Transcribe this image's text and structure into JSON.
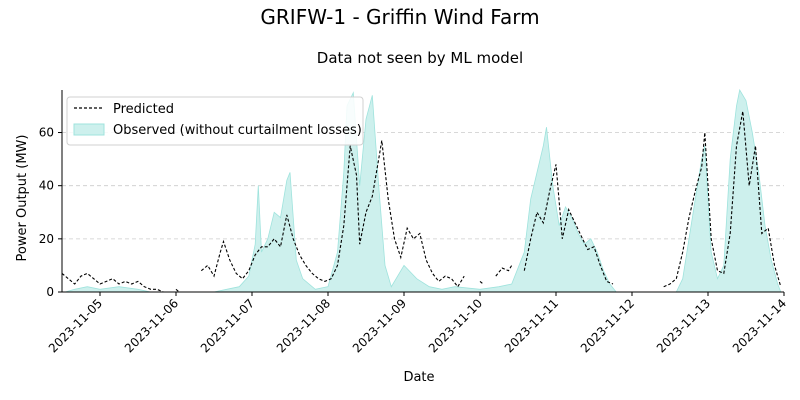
{
  "chart_data": {
    "type": "area",
    "title": "GRIFW-1 - Griffin Wind Farm",
    "subtitle": "Data not seen by ML model",
    "xlabel": "Date",
    "ylabel": "Power Output (MW)",
    "x_start": "2023-11-04 12:00",
    "x_end": "2023-11-14 00:00",
    "x_ticks": [
      "2023-11-05",
      "2023-11-06",
      "2023-11-07",
      "2023-11-08",
      "2023-11-09",
      "2023-11-10",
      "2023-11-11",
      "2023-11-12",
      "2023-11-13",
      "2023-11-14"
    ],
    "ylim": [
      0,
      76
    ],
    "y_ticks": [
      0,
      20,
      40,
      60
    ],
    "grid": "horizontal dashed",
    "legend_position": "top-left",
    "series": [
      {
        "name": "Predicted",
        "style": "dashed-line",
        "color": "#000000",
        "points": [
          [
            "2023-11-04 12:00",
            7
          ],
          [
            "2023-11-04 14:00",
            5
          ],
          [
            "2023-11-04 16:00",
            3
          ],
          [
            "2023-11-04 18:00",
            6
          ],
          [
            "2023-11-04 20:00",
            7
          ],
          [
            "2023-11-04 22:00",
            5
          ],
          [
            "2023-11-05 00:00",
            3
          ],
          [
            "2023-11-05 02:00",
            4
          ],
          [
            "2023-11-05 04:00",
            5
          ],
          [
            "2023-11-05 06:00",
            3
          ],
          [
            "2023-11-05 08:00",
            4
          ],
          [
            "2023-11-05 10:00",
            3
          ],
          [
            "2023-11-05 12:00",
            4
          ],
          [
            "2023-11-05 14:00",
            2
          ],
          [
            "2023-11-05 16:00",
            1
          ],
          [
            "2023-11-05 18:00",
            1
          ],
          [
            "2023-11-05 20:00",
            0
          ],
          null,
          [
            "2023-11-06 00:00",
            1
          ],
          [
            "2023-11-06 01:00",
            0
          ],
          null,
          [
            "2023-11-06 08:00",
            8
          ],
          [
            "2023-11-06 10:00",
            10
          ],
          [
            "2023-11-06 12:00",
            6
          ],
          [
            "2023-11-06 14:00",
            15
          ],
          [
            "2023-11-06 15:00",
            19
          ],
          [
            "2023-11-06 17:00",
            12
          ],
          [
            "2023-11-06 19:00",
            7
          ],
          [
            "2023-11-06 21:00",
            5
          ],
          [
            "2023-11-06 23:00",
            8
          ],
          [
            "2023-11-07 01:00",
            14
          ],
          [
            "2023-11-07 03:00",
            17
          ],
          [
            "2023-11-07 05:00",
            17
          ],
          [
            "2023-11-07 07:00",
            20
          ],
          [
            "2023-11-07 09:00",
            17
          ],
          [
            "2023-11-07 11:00",
            29
          ],
          [
            "2023-11-07 13:00",
            20
          ],
          [
            "2023-11-07 15:00",
            14
          ],
          [
            "2023-11-07 17:00",
            10
          ],
          [
            "2023-11-07 19:00",
            7
          ],
          [
            "2023-11-07 21:00",
            5
          ],
          [
            "2023-11-07 23:00",
            4
          ],
          [
            "2023-11-08 01:00",
            5
          ],
          [
            "2023-11-08 03:00",
            10
          ],
          [
            "2023-11-08 05:00",
            25
          ],
          [
            "2023-11-08 07:00",
            55
          ],
          [
            "2023-11-08 09:00",
            44
          ],
          [
            "2023-11-08 10:00",
            18
          ],
          [
            "2023-11-08 12:00",
            30
          ],
          [
            "2023-11-08 14:00",
            36
          ],
          [
            "2023-11-08 16:00",
            50
          ],
          [
            "2023-11-08 17:00",
            57
          ],
          [
            "2023-11-08 19:00",
            35
          ],
          [
            "2023-11-08 21:00",
            20
          ],
          [
            "2023-11-08 23:00",
            13
          ],
          [
            "2023-11-09 01:00",
            24
          ],
          [
            "2023-11-09 03:00",
            20
          ],
          [
            "2023-11-09 05:00",
            22
          ],
          [
            "2023-11-09 07:00",
            12
          ],
          [
            "2023-11-09 09:00",
            7
          ],
          [
            "2023-11-09 11:00",
            4
          ],
          [
            "2023-11-09 13:00",
            6
          ],
          [
            "2023-11-09 15:00",
            5
          ],
          [
            "2023-11-09 17:00",
            2
          ],
          [
            "2023-11-09 19:00",
            6
          ],
          null,
          [
            "2023-11-10 00:00",
            4
          ],
          [
            "2023-11-10 01:00",
            3
          ],
          null,
          [
            "2023-11-10 05:00",
            6
          ],
          [
            "2023-11-10 07:00",
            9
          ],
          [
            "2023-11-10 09:00",
            8
          ],
          [
            "2023-11-10 10:00",
            10
          ],
          null,
          [
            "2023-11-10 14:00",
            8
          ],
          [
            "2023-11-10 16:00",
            20
          ],
          [
            "2023-11-10 18:00",
            30
          ],
          [
            "2023-11-10 20:00",
            26
          ],
          [
            "2023-11-10 22:00",
            38
          ],
          [
            "2023-11-11 00:00",
            48
          ],
          [
            "2023-11-11 02:00",
            20
          ],
          [
            "2023-11-11 04:00",
            31
          ],
          [
            "2023-11-11 06:00",
            26
          ],
          [
            "2023-11-11 08:00",
            21
          ],
          [
            "2023-11-11 10:00",
            16
          ],
          [
            "2023-11-11 12:00",
            17
          ],
          [
            "2023-11-11 14:00",
            10
          ],
          [
            "2023-11-11 16:00",
            4
          ],
          [
            "2023-11-11 18:00",
            3
          ],
          null,
          [
            "2023-11-12 10:00",
            2
          ],
          [
            "2023-11-12 12:00",
            3
          ],
          [
            "2023-11-12 14:00",
            5
          ],
          [
            "2023-11-12 16:00",
            15
          ],
          [
            "2023-11-12 18:00",
            28
          ],
          [
            "2023-11-12 20:00",
            38
          ],
          [
            "2023-11-12 22:00",
            47
          ],
          [
            "2023-11-12 23:00",
            60
          ],
          [
            "2023-11-13 01:00",
            20
          ],
          [
            "2023-11-13 03:00",
            8
          ],
          [
            "2023-11-13 05:00",
            7
          ],
          [
            "2023-11-13 07:00",
            22
          ],
          [
            "2023-11-13 09:00",
            55
          ],
          [
            "2023-11-13 11:00",
            68
          ],
          [
            "2023-11-13 13:00",
            40
          ],
          [
            "2023-11-13 15:00",
            55
          ],
          [
            "2023-11-13 17:00",
            22
          ],
          [
            "2023-11-13 19:00",
            24
          ],
          [
            "2023-11-13 21:00",
            10
          ],
          [
            "2023-11-13 23:00",
            2
          ]
        ]
      },
      {
        "name": "Observed (without curtailment losses)",
        "style": "filled-area",
        "color": "#9fe3dd",
        "points": [
          [
            "2023-11-04 13:00",
            0
          ],
          [
            "2023-11-04 16:00",
            1
          ],
          [
            "2023-11-04 20:00",
            2
          ],
          [
            "2023-11-05 00:00",
            1
          ],
          [
            "2023-11-05 06:00",
            2
          ],
          [
            "2023-11-05 12:00",
            1
          ],
          [
            "2023-11-05 16:00",
            0
          ],
          null,
          [
            "2023-11-06 12:00",
            0
          ],
          [
            "2023-11-06 16:00",
            1
          ],
          [
            "2023-11-06 20:00",
            2
          ],
          [
            "2023-11-06 23:00",
            6
          ],
          [
            "2023-11-07 01:00",
            18
          ],
          [
            "2023-11-07 02:00",
            40
          ],
          [
            "2023-11-07 03:00",
            15
          ],
          [
            "2023-11-07 05:00",
            20
          ],
          [
            "2023-11-07 07:00",
            30
          ],
          [
            "2023-11-07 09:00",
            28
          ],
          [
            "2023-11-07 11:00",
            42
          ],
          [
            "2023-11-07 12:00",
            45
          ],
          [
            "2023-11-07 14:00",
            12
          ],
          [
            "2023-11-07 16:00",
            5
          ],
          [
            "2023-11-07 20:00",
            1
          ],
          [
            "2023-11-08 00:00",
            2
          ],
          [
            "2023-11-08 03:00",
            15
          ],
          [
            "2023-11-08 05:00",
            45
          ],
          [
            "2023-11-08 06:00",
            70
          ],
          [
            "2023-11-08 08:00",
            75
          ],
          [
            "2023-11-08 10:00",
            40
          ],
          [
            "2023-11-08 12:00",
            65
          ],
          [
            "2023-11-08 14:00",
            74
          ],
          [
            "2023-11-08 16:00",
            40
          ],
          [
            "2023-11-08 18:00",
            10
          ],
          [
            "2023-11-08 20:00",
            2
          ],
          [
            "2023-11-09 00:00",
            10
          ],
          [
            "2023-11-09 04:00",
            5
          ],
          [
            "2023-11-09 08:00",
            2
          ],
          [
            "2023-11-09 12:00",
            1
          ],
          [
            "2023-11-09 16:00",
            2
          ],
          [
            "2023-11-10 00:00",
            1
          ],
          [
            "2023-11-10 06:00",
            2
          ],
          [
            "2023-11-10 10:00",
            3
          ],
          [
            "2023-11-10 14:00",
            15
          ],
          [
            "2023-11-10 16:00",
            35
          ],
          [
            "2023-11-10 18:00",
            45
          ],
          [
            "2023-11-10 20:00",
            55
          ],
          [
            "2023-11-10 21:00",
            62
          ],
          [
            "2023-11-10 23:00",
            40
          ],
          [
            "2023-11-11 01:00",
            25
          ],
          [
            "2023-11-11 03:00",
            32
          ],
          [
            "2023-11-11 05:00",
            28
          ],
          [
            "2023-11-11 07:00",
            22
          ],
          [
            "2023-11-11 09:00",
            18
          ],
          [
            "2023-11-11 11:00",
            20
          ],
          [
            "2023-11-11 13:00",
            15
          ],
          [
            "2023-11-11 15:00",
            8
          ],
          [
            "2023-11-11 17:00",
            3
          ],
          [
            "2023-11-11 19:00",
            0
          ],
          null,
          [
            "2023-11-12 14:00",
            0
          ],
          [
            "2023-11-12 16:00",
            5
          ],
          [
            "2023-11-12 18:00",
            20
          ],
          [
            "2023-11-12 20:00",
            35
          ],
          [
            "2023-11-12 22:00",
            50
          ],
          [
            "2023-11-12 23:00",
            55
          ],
          [
            "2023-11-13 01:00",
            15
          ],
          [
            "2023-11-13 03:00",
            5
          ],
          [
            "2023-11-13 05:00",
            10
          ],
          [
            "2023-11-13 07:00",
            50
          ],
          [
            "2023-11-13 09:00",
            70
          ],
          [
            "2023-11-13 10:00",
            76
          ],
          [
            "2023-11-13 12:00",
            72
          ],
          [
            "2023-11-13 14:00",
            60
          ],
          [
            "2023-11-13 16:00",
            45
          ],
          [
            "2023-11-13 18:00",
            25
          ],
          [
            "2023-11-13 20:00",
            12
          ],
          [
            "2023-11-13 22:00",
            3
          ],
          [
            "2023-11-13 23:00",
            0
          ]
        ]
      }
    ]
  }
}
